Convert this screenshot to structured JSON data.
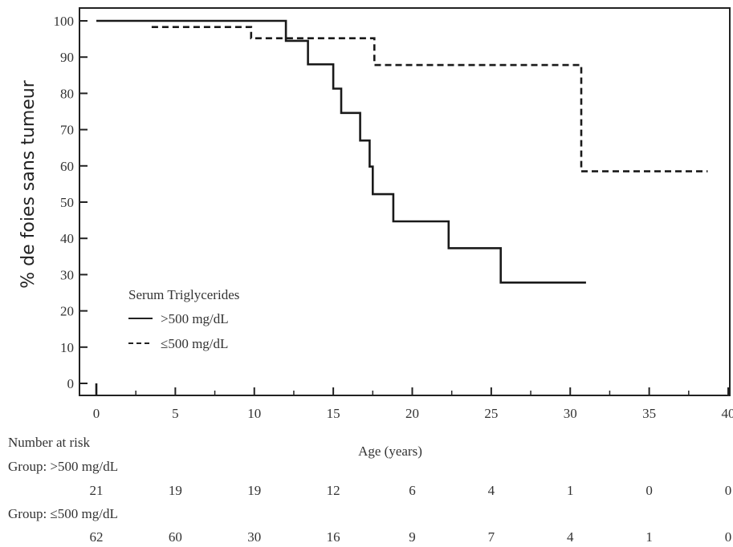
{
  "chart_data": {
    "type": "line",
    "subtype": "kaplan-meier step",
    "xlabel": "Age (years)",
    "ylabel": "% de foies sans tumeur",
    "xlim": [
      0,
      40
    ],
    "ylim": [
      0,
      100
    ],
    "x_ticks": [
      0,
      5,
      10,
      15,
      20,
      25,
      30,
      35,
      40
    ],
    "y_ticks": [
      0,
      10,
      20,
      30,
      40,
      50,
      60,
      70,
      80,
      90,
      100
    ],
    "grid": false,
    "legend": {
      "title": "Serum Triglycerides",
      "placement": "lower-left",
      "entries": [
        ">500 mg/dL",
        "≤500 mg/dL"
      ]
    },
    "series": [
      {
        "name": ">500 mg/dL",
        "line_style": "solid",
        "points": [
          [
            0,
            100
          ],
          [
            12,
            100
          ],
          [
            12,
            94.5
          ],
          [
            13.4,
            94.5
          ],
          [
            13.4,
            88
          ],
          [
            15,
            88
          ],
          [
            15,
            81.3
          ],
          [
            15.5,
            81.3
          ],
          [
            15.5,
            74.6
          ],
          [
            16.7,
            74.6
          ],
          [
            16.7,
            67
          ],
          [
            17.3,
            67
          ],
          [
            17.3,
            59.8
          ],
          [
            17.5,
            59.8
          ],
          [
            17.5,
            52.2
          ],
          [
            18.8,
            52.2
          ],
          [
            18.8,
            44.7
          ],
          [
            22.3,
            44.7
          ],
          [
            22.3,
            37.3
          ],
          [
            25.6,
            37.3
          ],
          [
            25.6,
            27.8
          ],
          [
            31,
            27.8
          ]
        ]
      },
      {
        "name": "≤500 mg/dL",
        "line_style": "dashed",
        "points": [
          [
            3.5,
            98.3
          ],
          [
            9.8,
            98.3
          ],
          [
            9.8,
            95.2
          ],
          [
            17.6,
            95.2
          ],
          [
            17.6,
            87.8
          ],
          [
            30.7,
            87.8
          ],
          [
            30.7,
            58.5
          ],
          [
            38.7,
            58.5
          ]
        ]
      }
    ],
    "risk_table": {
      "title": "Number at risk",
      "groups": [
        {
          "label": "Group: >500 mg/dL",
          "values": [
            "21",
            "19",
            "19",
            "12",
            "6",
            "4",
            "1",
            "0",
            "0"
          ]
        },
        {
          "label": "Group: ≤500 mg/dL",
          "values": [
            "62",
            "60",
            "30",
            "16",
            "9",
            "7",
            "4",
            "1",
            "0"
          ]
        }
      ]
    }
  }
}
